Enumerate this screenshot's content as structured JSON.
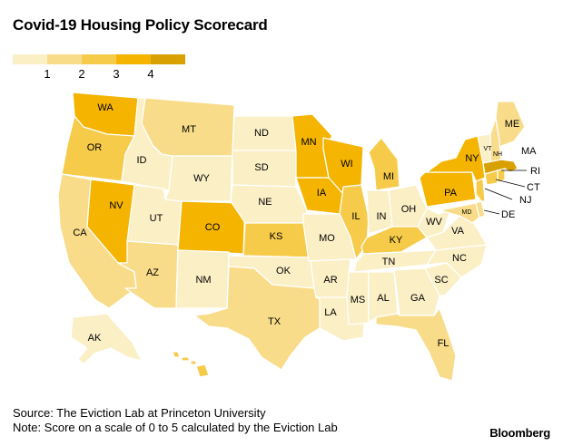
{
  "title": "Covid-19 Housing Policy Scorecard",
  "legend": {
    "colors": [
      "#fbefc6",
      "#f9dc8a",
      "#f7cb4a",
      "#f4b400",
      "#d8a000"
    ],
    "labels": [
      "1",
      "2",
      "3",
      "4"
    ]
  },
  "states": [
    {
      "id": "WA",
      "label": "WA",
      "score": 3
    },
    {
      "id": "OR",
      "label": "OR",
      "score": 2
    },
    {
      "id": "CA",
      "label": "CA",
      "score": 1
    },
    {
      "id": "ID",
      "label": "ID",
      "score": 0
    },
    {
      "id": "NV",
      "label": "NV",
      "score": 3
    },
    {
      "id": "UT",
      "label": "UT",
      "score": 0
    },
    {
      "id": "AZ",
      "label": "AZ",
      "score": 1
    },
    {
      "id": "MT",
      "label": "MT",
      "score": 1
    },
    {
      "id": "WY",
      "label": "WY",
      "score": 0
    },
    {
      "id": "CO",
      "label": "CO",
      "score": 3
    },
    {
      "id": "NM",
      "label": "NM",
      "score": 0
    },
    {
      "id": "ND",
      "label": "ND",
      "score": 0
    },
    {
      "id": "SD",
      "label": "SD",
      "score": 0
    },
    {
      "id": "NE",
      "label": "NE",
      "score": 0
    },
    {
      "id": "KS",
      "label": "KS",
      "score": 2
    },
    {
      "id": "OK",
      "label": "OK",
      "score": 0
    },
    {
      "id": "TX",
      "label": "TX",
      "score": 1
    },
    {
      "id": "MN",
      "label": "MN",
      "score": 3
    },
    {
      "id": "IA",
      "label": "IA",
      "score": 3
    },
    {
      "id": "MO",
      "label": "MO",
      "score": 0
    },
    {
      "id": "AR",
      "label": "AR",
      "score": 0
    },
    {
      "id": "LA",
      "label": "LA",
      "score": 0
    },
    {
      "id": "WI",
      "label": "WI",
      "score": 3
    },
    {
      "id": "IL",
      "label": "IL",
      "score": 2
    },
    {
      "id": "MI",
      "label": "MI",
      "score": 2
    },
    {
      "id": "IN",
      "label": "IN",
      "score": 0
    },
    {
      "id": "OH",
      "label": "OH",
      "score": 0
    },
    {
      "id": "KY",
      "label": "KY",
      "score": 2
    },
    {
      "id": "TN",
      "label": "TN",
      "score": 0
    },
    {
      "id": "MS",
      "label": "MS",
      "score": 0
    },
    {
      "id": "AL",
      "label": "AL",
      "score": 0
    },
    {
      "id": "GA",
      "label": "GA",
      "score": 0
    },
    {
      "id": "FL",
      "label": "FL",
      "score": 1
    },
    {
      "id": "SC",
      "label": "SC",
      "score": 0
    },
    {
      "id": "NC",
      "label": "NC",
      "score": 0
    },
    {
      "id": "VA",
      "label": "VA",
      "score": 0
    },
    {
      "id": "WV",
      "label": "WV",
      "score": 0
    },
    {
      "id": "PA",
      "label": "PA",
      "score": 3
    },
    {
      "id": "NY",
      "label": "NY",
      "score": 3
    },
    {
      "id": "NJ",
      "label": "NJ",
      "score": 2
    },
    {
      "id": "DE",
      "label": "DE",
      "score": 1
    },
    {
      "id": "MD",
      "label": "MD",
      "score": 1
    },
    {
      "id": "VT",
      "label": "VT",
      "score": 0
    },
    {
      "id": "NH",
      "label": "NH",
      "score": 1
    },
    {
      "id": "ME",
      "label": "ME",
      "score": 1
    },
    {
      "id": "MA",
      "label": "MA",
      "score": 4
    },
    {
      "id": "RI",
      "label": "RI",
      "score": 2
    },
    {
      "id": "CT",
      "label": "CT",
      "score": 2
    },
    {
      "id": "AK",
      "label": "AK",
      "score": 0
    },
    {
      "id": "HI",
      "label": "",
      "score": 2
    }
  ],
  "source": "Source: The Eviction Lab at Princeton University",
  "note": "Note: Score on a scale of 0 to 5 calculated by the Eviction Lab",
  "brand": "Bloomberg"
}
